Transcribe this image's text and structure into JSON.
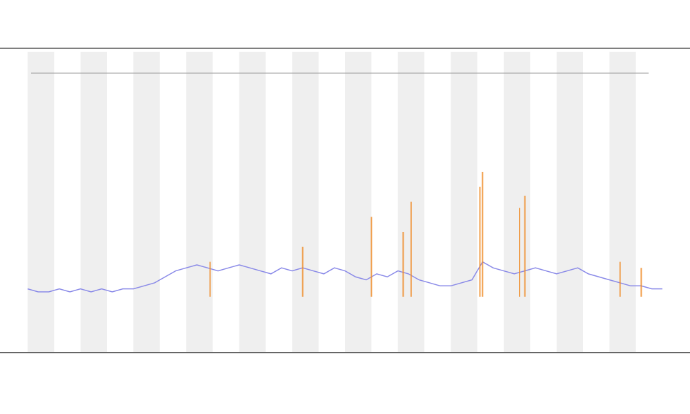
{
  "chart_data": {
    "type": "line",
    "xlim": [
      0,
      120
    ],
    "ylim": [
      0,
      100
    ],
    "series": [
      {
        "color": "#8a8ae8",
        "x": [
          0,
          2,
          4,
          6,
          8,
          10,
          12,
          14,
          16,
          18,
          20,
          22,
          24,
          26,
          28,
          30,
          32,
          34,
          36,
          38,
          40,
          42,
          44,
          46,
          48,
          50,
          52,
          54,
          56,
          58,
          60,
          62,
          64,
          66,
          68,
          70,
          72,
          74,
          76,
          78,
          80,
          82,
          84,
          86,
          88,
          90,
          92,
          94,
          96,
          98,
          100,
          102,
          104,
          106,
          108,
          110,
          112,
          114,
          116,
          118,
          120
        ],
        "values": [
          21,
          20,
          20,
          21,
          20,
          21,
          20,
          21,
          20,
          21,
          21,
          22,
          23,
          25,
          27,
          28,
          29,
          28,
          27,
          28,
          29,
          28,
          27,
          26,
          28,
          27,
          28,
          27,
          26,
          28,
          27,
          25,
          24,
          26,
          25,
          27,
          26,
          24,
          23,
          22,
          22,
          23,
          24,
          30,
          28,
          27,
          26,
          27,
          28,
          27,
          26,
          27,
          28,
          26,
          25,
          24,
          23,
          22,
          22,
          21,
          21
        ]
      },
      {
        "kind": "spike",
        "color": "#f08a24",
        "x": [
          34.5,
          52,
          65,
          71,
          72.5,
          85.5,
          86,
          93,
          94,
          112,
          116
        ],
        "values": [
          30,
          35,
          45,
          40,
          50,
          55,
          60,
          48,
          52,
          30,
          28
        ]
      }
    ]
  }
}
